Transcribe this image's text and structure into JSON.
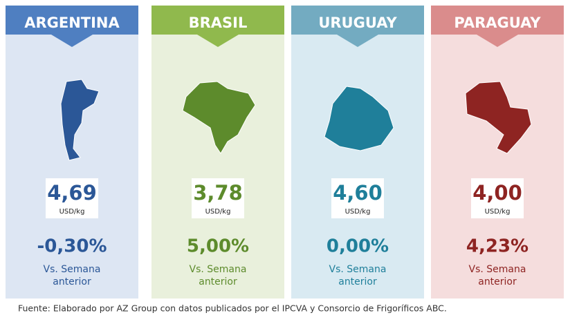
{
  "cards": [
    {
      "country": "ARGENTINA",
      "price": "4,69",
      "unit": "USD/kg",
      "change": "-0,30%",
      "caption": [
        "Vs. Semana",
        "anterior"
      ]
    },
    {
      "country": "BRASIL",
      "price": "3,78",
      "unit": "USD/kg",
      "change": "5,00%",
      "caption": [
        "Vs. Semana",
        "anterior"
      ]
    },
    {
      "country": "URUGUAY",
      "price": "4,60",
      "unit": "USD/kg",
      "change": "0,00%",
      "caption": [
        "Vs. Semana",
        "anterior"
      ]
    },
    {
      "country": "PARAGUAY",
      "price": "4,00",
      "unit": "USD/kg",
      "change": "4,23%",
      "caption": [
        "Vs. Semana",
        "anterior"
      ]
    }
  ],
  "source": "Fuente: Elaborado por AZ Group con datos publicados por el IPCVA y Consorcio de Frigoríficos ABC."
}
